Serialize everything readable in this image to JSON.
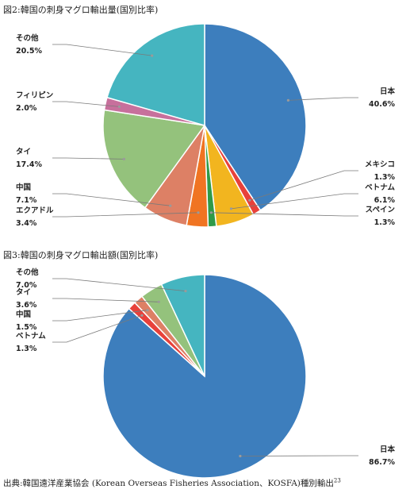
{
  "figure1": {
    "title": "図2:韓国の刺身マグロ輸出量(国別比率)"
  },
  "figure2": {
    "title": "図3:韓国の刺身マグロ輸出額(国別比率)"
  },
  "source": {
    "text": "出典:韓国遠洋産業協会 (Korean Overseas Fisheries Association、KOSFA)種別輸出",
    "superscript": "23"
  },
  "chart_data": [
    {
      "type": "pie",
      "title": "図2:韓国の刺身マグロ輸出量(国別比率)",
      "start": "12 o'clock, clockwise",
      "slices": [
        {
          "label": "日本",
          "value": 40.6,
          "value_label": "40.6%",
          "color": "#3d7ebd"
        },
        {
          "label": "メキシコ",
          "value": 1.3,
          "value_label": "1.3%",
          "color": "#e8413b"
        },
        {
          "label": "ベトナム",
          "value": 6.1,
          "value_label": "6.1%",
          "color": "#f2b51f"
        },
        {
          "label": "スペイン",
          "value": 1.3,
          "value_label": "1.3%",
          "color": "#2f9a48"
        },
        {
          "label": "エクアドル",
          "value": 3.4,
          "value_label": "3.4%",
          "color": "#f07422"
        },
        {
          "label": "中国",
          "value": 7.1,
          "value_label": "7.1%",
          "color": "#dd8065"
        },
        {
          "label": "タイ",
          "value": 17.4,
          "value_label": "17.4%",
          "color": "#94c27c"
        },
        {
          "label": "フィリピン",
          "value": 2.0,
          "value_label": "2.0%",
          "color": "#c7709c"
        },
        {
          "label": "その他",
          "value": 20.5,
          "value_label": "20.5%",
          "color": "#45b5c0"
        }
      ]
    },
    {
      "type": "pie",
      "title": "図3:韓国の刺身マグロ輸出額(国別比率)",
      "start": "12 o'clock, clockwise",
      "slices": [
        {
          "label": "日本",
          "value": 86.7,
          "value_label": "86.7%",
          "color": "#3d7ebd"
        },
        {
          "label": "ベトナム",
          "value": 1.3,
          "value_label": "1.3%",
          "color": "#e8413b"
        },
        {
          "label": "中国",
          "value": 1.5,
          "value_label": "1.5%",
          "color": "#dd8065"
        },
        {
          "label": "タイ",
          "value": 3.6,
          "value_label": "3.6%",
          "color": "#94c27c"
        },
        {
          "label": "その他",
          "value": 7.0,
          "value_label": "7.0%",
          "color": "#45b5c0"
        }
      ]
    }
  ]
}
